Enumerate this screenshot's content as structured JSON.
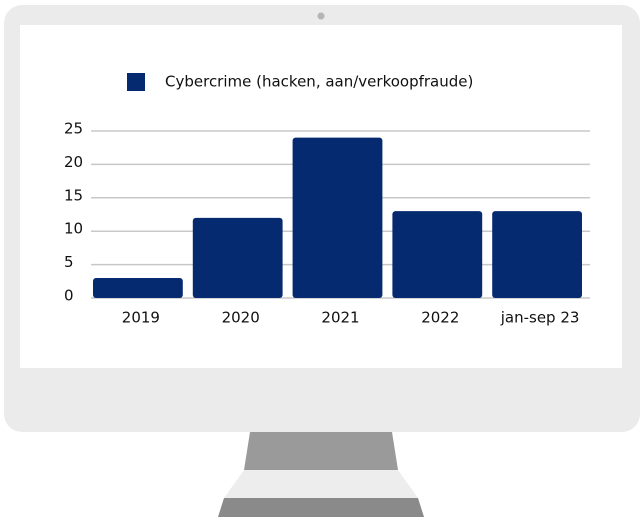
{
  "chart_data": {
    "type": "bar",
    "categories": [
      "2019",
      "2020",
      "2021",
      "2022",
      "jan-sep 23"
    ],
    "series": [
      {
        "name": "Cybercrime (hacken, aan/verkoopfraude)",
        "color": "#062a70",
        "values": [
          3,
          12,
          24,
          13,
          13
        ]
      }
    ],
    "ylim": [
      0,
      25
    ],
    "yticks": [
      0,
      5,
      10,
      15,
      20,
      25
    ],
    "grid": true,
    "legend": "top"
  }
}
